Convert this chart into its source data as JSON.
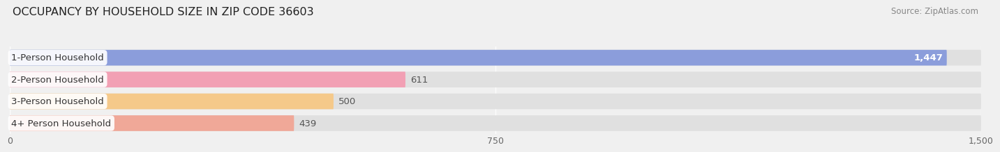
{
  "title": "OCCUPANCY BY HOUSEHOLD SIZE IN ZIP CODE 36603",
  "source": "Source: ZipAtlas.com",
  "categories": [
    "1-Person Household",
    "2-Person Household",
    "3-Person Household",
    "4+ Person Household"
  ],
  "values": [
    1447,
    611,
    500,
    439
  ],
  "bar_colors": [
    "#8b9ddb",
    "#f2a0b4",
    "#f5c98a",
    "#f0a898"
  ],
  "xlim": [
    0,
    1500
  ],
  "xticks": [
    0,
    750,
    1500
  ],
  "xticklabels": [
    "0",
    "750",
    "1,500"
  ],
  "value_labels": [
    "1,447",
    "611",
    "500",
    "439"
  ],
  "value_label_color_inside": "#ffffff",
  "value_label_color_outside": "#666666",
  "title_fontsize": 11.5,
  "source_fontsize": 8.5,
  "label_fontsize": 9.5,
  "tick_fontsize": 9,
  "background_color": "#f0f0f0",
  "bar_bg_color": "#e0e0e0",
  "bar_row_bg": "#e8e8e8"
}
